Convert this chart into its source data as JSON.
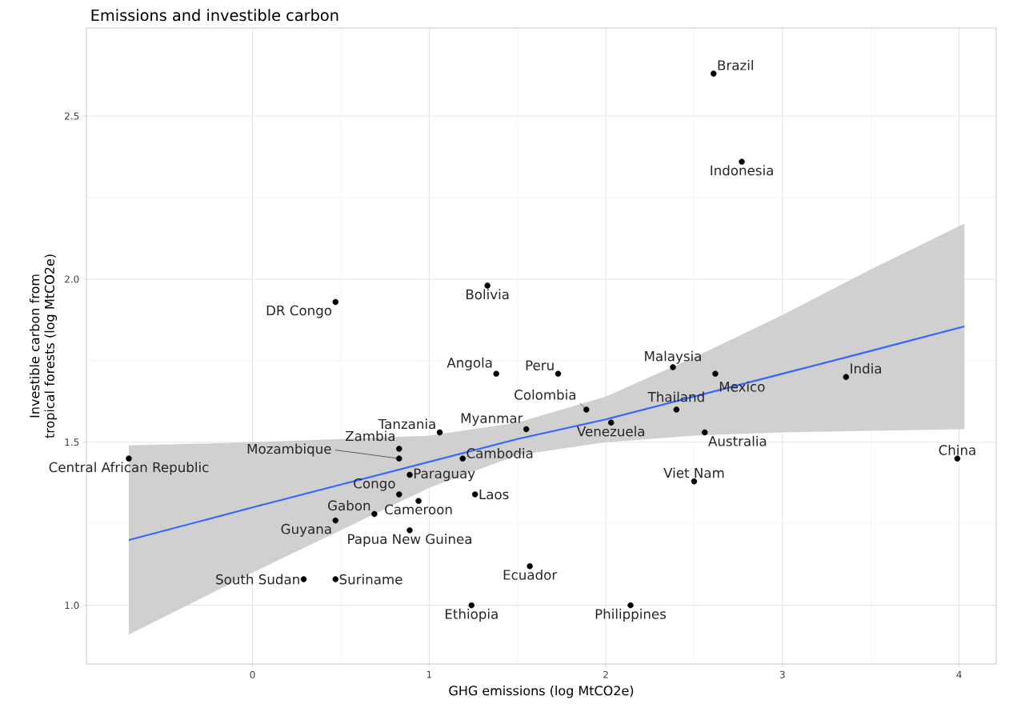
{
  "chart_data": {
    "type": "scatter",
    "title": "Emissions and investible carbon",
    "xlabel": "GHG emissions (log MtCO2e)",
    "ylabel": "Investible carbon from tropical forests (log MtCO2e)",
    "xlim": [
      -0.94,
      4.21
    ],
    "ylim": [
      0.82,
      2.77
    ],
    "xticks": [
      0,
      1,
      2,
      3,
      4
    ],
    "yticks": [
      {
        "value": 1.0,
        "label": "1.0"
      },
      {
        "value": 1.5,
        "label": "1.5"
      },
      {
        "value": 2.0,
        "label": "2.0"
      },
      {
        "value": 2.5,
        "label": "2.5"
      }
    ],
    "grid": true,
    "series": [
      {
        "marker": "circle",
        "color": "#000000",
        "x": [
          2.61,
          2.77,
          1.33,
          0.47,
          1.38,
          1.73,
          2.38,
          2.62,
          3.36,
          1.89,
          2.4,
          1.55,
          2.03,
          1.06,
          2.56,
          0.83,
          0.83,
          1.19,
          3.99,
          -0.7,
          0.89,
          2.5,
          0.83,
          1.26,
          0.69,
          0.94,
          0.47,
          0.89,
          1.57,
          0.29,
          0.47,
          1.24,
          2.14
        ],
        "values": [
          2.63,
          2.36,
          1.98,
          1.93,
          1.71,
          1.71,
          1.73,
          1.71,
          1.7,
          1.6,
          1.6,
          1.54,
          1.56,
          1.53,
          1.53,
          1.48,
          1.45,
          1.45,
          1.45,
          1.45,
          1.4,
          1.38,
          1.34,
          1.34,
          1.28,
          1.32,
          1.26,
          1.23,
          1.12,
          1.08,
          1.08,
          1.0,
          1.0
        ]
      },
      {
        "type": "line",
        "marker": "none",
        "color": "#3366ff",
        "x": [
          -0.7,
          0,
          0.5,
          1,
          1.5,
          2,
          2.5,
          3,
          3.5,
          4.03
        ],
        "values": [
          1.2,
          1.3,
          1.37,
          1.44,
          1.51,
          1.57,
          1.64,
          1.71,
          1.78,
          1.855
        ],
        "lower": [
          0.91,
          1.1,
          1.23,
          1.36,
          1.46,
          1.5,
          1.52,
          1.53,
          1.535,
          1.54
        ],
        "upper": [
          1.49,
          1.5,
          1.51,
          1.52,
          1.56,
          1.64,
          1.76,
          1.89,
          2.03,
          2.17
        ]
      }
    ],
    "annotations": [
      {
        "text": "Brazil",
        "x": 2.61,
        "y": 2.63
      },
      {
        "text": "Indonesia",
        "x": 2.77,
        "y": 2.36
      },
      {
        "text": "Bolivia",
        "x": 1.33,
        "y": 1.98
      },
      {
        "text": "DR Congo",
        "x": 0.47,
        "y": 1.93
      },
      {
        "text": "Angola",
        "x": 1.38,
        "y": 1.71
      },
      {
        "text": "Peru",
        "x": 1.73,
        "y": 1.71
      },
      {
        "text": "Malaysia",
        "x": 2.38,
        "y": 1.73
      },
      {
        "text": "Mexico",
        "x": 2.62,
        "y": 1.71
      },
      {
        "text": "India",
        "x": 3.36,
        "y": 1.7
      },
      {
        "text": "Colombia",
        "x": 1.89,
        "y": 1.6
      },
      {
        "text": "Thailand",
        "x": 2.4,
        "y": 1.6
      },
      {
        "text": "Myanmar",
        "x": 1.55,
        "y": 1.54
      },
      {
        "text": "Venezuela",
        "x": 2.03,
        "y": 1.56
      },
      {
        "text": "Tanzania",
        "x": 1.06,
        "y": 1.53
      },
      {
        "text": "Australia",
        "x": 2.56,
        "y": 1.53
      },
      {
        "text": "Zambia",
        "x": 0.83,
        "y": 1.48
      },
      {
        "text": "Mozambique",
        "x": 0.83,
        "y": 1.45
      },
      {
        "text": "Cambodia",
        "x": 1.19,
        "y": 1.45
      },
      {
        "text": "China",
        "x": 3.99,
        "y": 1.45
      },
      {
        "text": "Central African Republic",
        "x": -0.7,
        "y": 1.45
      },
      {
        "text": "Paraguay",
        "x": 0.89,
        "y": 1.4
      },
      {
        "text": "Viet Nam",
        "x": 2.5,
        "y": 1.38
      },
      {
        "text": "Congo",
        "x": 0.83,
        "y": 1.34
      },
      {
        "text": "Laos",
        "x": 1.26,
        "y": 1.34
      },
      {
        "text": "Gabon",
        "x": 0.69,
        "y": 1.28
      },
      {
        "text": "Cameroon",
        "x": 0.94,
        "y": 1.32
      },
      {
        "text": "Guyana",
        "x": 0.47,
        "y": 1.26
      },
      {
        "text": "Papua New Guinea",
        "x": 0.89,
        "y": 1.23
      },
      {
        "text": "Ecuador",
        "x": 1.57,
        "y": 1.12
      },
      {
        "text": "South Sudan",
        "x": 0.29,
        "y": 1.08
      },
      {
        "text": "Suriname",
        "x": 0.47,
        "y": 1.08
      },
      {
        "text": "Ethiopia",
        "x": 1.24,
        "y": 1.0
      },
      {
        "text": "Philippines",
        "x": 2.14,
        "y": 1.0
      }
    ]
  }
}
